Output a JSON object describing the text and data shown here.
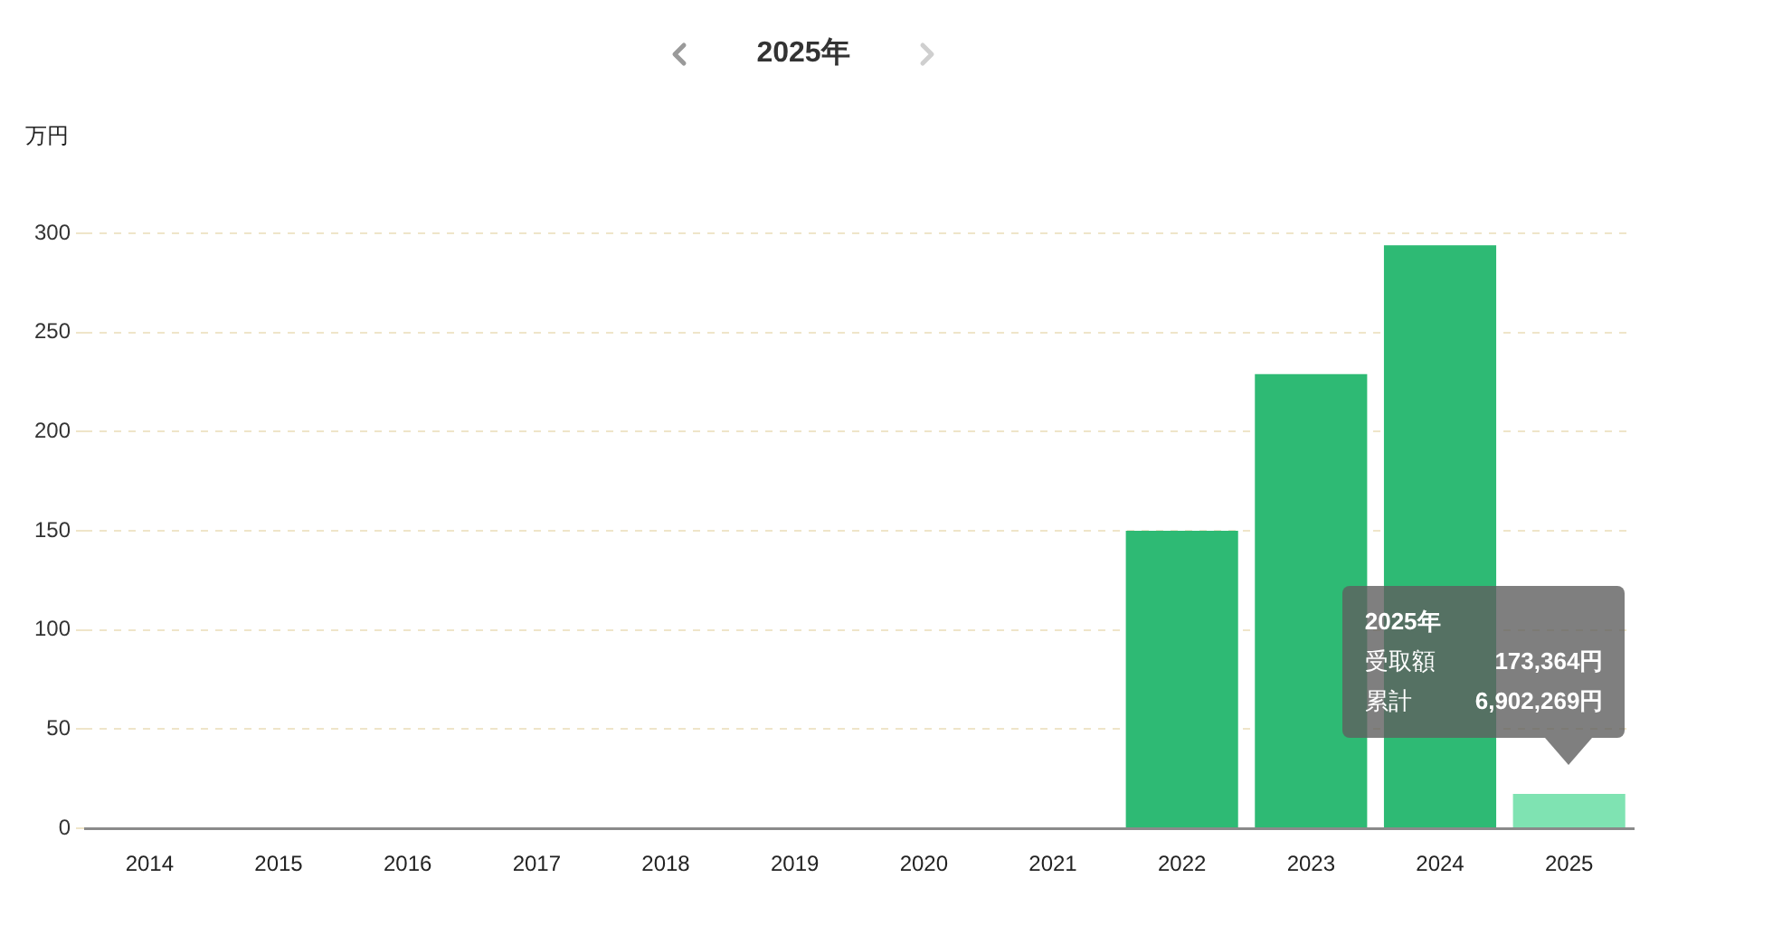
{
  "chart_data": {
    "type": "bar",
    "title": "2025年",
    "ylabel": "万円",
    "categories": [
      "2014",
      "2015",
      "2016",
      "2017",
      "2018",
      "2019",
      "2020",
      "2021",
      "2022",
      "2023",
      "2024",
      "2025"
    ],
    "values": [
      0,
      0,
      0,
      0,
      0,
      0,
      0,
      0,
      150,
      229,
      294,
      17.3364
    ],
    "colors": [
      "#2eba74",
      "#2eba74",
      "#2eba74",
      "#2eba74",
      "#2eba74",
      "#2eba74",
      "#2eba74",
      "#2eba74",
      "#2eba74",
      "#2eba74",
      "#2eba74",
      "#7fe3b2"
    ],
    "ylim": [
      0,
      300
    ],
    "yticks": [
      0,
      50,
      100,
      150,
      200,
      250,
      300
    ],
    "grid": "y",
    "annotations": [
      "2025年",
      "受取額",
      "173,364円",
      "累計",
      "6,902,269円"
    ]
  }
}
